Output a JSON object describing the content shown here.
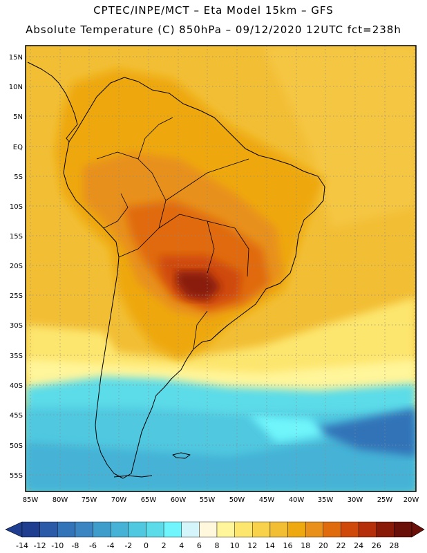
{
  "header": {
    "line1": "CPTEC/INPE/MCT –  Eta Model 15km – GFS",
    "line2": "Absolute Temperature (C) 850hPa – 09/12/2020 12UTC fct=238h"
  },
  "axes": {
    "lat_labels": [
      "15N",
      "10N",
      "5N",
      "EQ",
      "5S",
      "10S",
      "15S",
      "20S",
      "25S",
      "30S",
      "35S",
      "40S",
      "45S",
      "50S",
      "55S"
    ],
    "lon_labels": [
      "85W",
      "80W",
      "75W",
      "70W",
      "65W",
      "60W",
      "55W",
      "50W",
      "45W",
      "40W",
      "35W",
      "30W",
      "25W",
      "20W"
    ]
  },
  "colorbar": {
    "labels": [
      "-14",
      "-12",
      "-10",
      "-8",
      "-6",
      "-4",
      "-2",
      "0",
      "2",
      "4",
      "6",
      "8",
      "10",
      "12",
      "14",
      "16",
      "18",
      "20",
      "22",
      "24",
      "26",
      "28"
    ],
    "colors": [
      "#1f3e8f",
      "#2a5aa8",
      "#3373b8",
      "#3b86c2",
      "#3f9dcc",
      "#45b2d6",
      "#4fc8e0",
      "#5cdbe8",
      "#6ff5fb",
      "#d4f6fb",
      "#fff8dc",
      "#fff59a",
      "#fde66e",
      "#f8d24a",
      "#f2be34",
      "#eea810",
      "#e8901a",
      "#e06b0c",
      "#cf4a0a",
      "#b52f0a",
      "#8a1a08",
      "#6a1008"
    ]
  },
  "colors": {
    "ocean_warm": "#f2be34",
    "ocean_cool": "#5cdbe8",
    "land_hot": "#b52f0a"
  }
}
